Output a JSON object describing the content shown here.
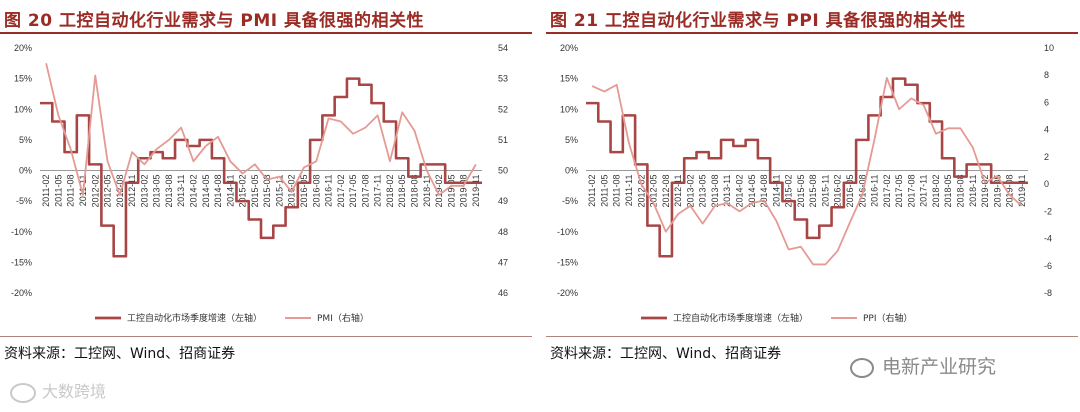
{
  "chart_data": [
    {
      "type": "line",
      "title": "图 20 工控自动化行业需求与 PMI 具备很强的相关性",
      "source": "资料来源：工控网、Wind、招商证券",
      "x": [
        "2011-02",
        "2011-05",
        "2011-08",
        "2011-11",
        "2012-02",
        "2012-05",
        "2012-08",
        "2012-11",
        "2013-02",
        "2013-05",
        "2013-08",
        "2013-11",
        "2014-02",
        "2014-05",
        "2014-08",
        "2014-11",
        "2015-02",
        "2015-05",
        "2015-08",
        "2015-11",
        "2016-02",
        "2016-05",
        "2016-08",
        "2016-11",
        "2017-02",
        "2017-05",
        "2017-08",
        "2017-11",
        "2018-02",
        "2018-05",
        "2018-08",
        "2018-11",
        "2019-02",
        "2019-05",
        "2019-08",
        "2019-11"
      ],
      "y_left": {
        "ticks": [
          "20%",
          "15%",
          "10%",
          "5%",
          "0%",
          "-5%",
          "-10%",
          "-15%",
          "-20%"
        ],
        "ylim": [
          -20,
          20
        ]
      },
      "y_right": {
        "ticks": [
          "54",
          "53",
          "52",
          "51",
          "50",
          "49",
          "48",
          "47",
          "46"
        ],
        "ylim": [
          46,
          54
        ]
      },
      "series": [
        {
          "name": "工控自动化市场季度增速（左轴）",
          "axis": "left",
          "color": "#a84545",
          "style": "step",
          "values": [
            11,
            8,
            3,
            9,
            1,
            -9,
            -14,
            -2,
            2,
            3,
            2,
            5,
            4,
            5,
            2,
            -2,
            -5,
            -8,
            -11,
            -9,
            -6,
            -2,
            5,
            9,
            12,
            15,
            14,
            11,
            8,
            2,
            -1,
            1,
            1,
            -2,
            -2,
            -2
          ]
        },
        {
          "name": "PMI（右轴）",
          "axis": "right",
          "color": "#e59a93",
          "style": "line",
          "values": [
            53.5,
            51.8,
            50.7,
            49.2,
            53.1,
            50.3,
            49.2,
            50.6,
            50.2,
            50.7,
            51.0,
            51.4,
            50.3,
            50.8,
            51.1,
            50.3,
            49.9,
            50.2,
            49.7,
            49.8,
            49.3,
            50.1,
            50.3,
            51.7,
            51.6,
            51.2,
            51.4,
            51.8,
            50.3,
            51.9,
            51.3,
            50.0,
            49.2,
            49.5,
            49.5,
            50.2
          ]
        }
      ]
    },
    {
      "type": "line",
      "title": "图 21 工控自动化行业需求与 PPI 具备很强的相关性",
      "source": "资料来源：工控网、Wind、招商证券",
      "x": [
        "2011-02",
        "2011-05",
        "2011-08",
        "2011-11",
        "2012-02",
        "2012-05",
        "2012-08",
        "2012-11",
        "2013-02",
        "2013-05",
        "2013-08",
        "2013-11",
        "2014-02",
        "2014-05",
        "2014-08",
        "2014-11",
        "2015-02",
        "2015-05",
        "2015-08",
        "2015-11",
        "2016-02",
        "2016-05",
        "2016-08",
        "2016-11",
        "2017-02",
        "2017-05",
        "2017-08",
        "2017-11",
        "2018-02",
        "2018-05",
        "2018-08",
        "2018-11",
        "2019-02",
        "2019-05",
        "2019-08",
        "2019-11"
      ],
      "y_left": {
        "ticks": [
          "20%",
          "15%",
          "10%",
          "5%",
          "0%",
          "-5%",
          "-10%",
          "-15%",
          "-20%"
        ],
        "ylim": [
          -20,
          20
        ]
      },
      "y_right": {
        "ticks": [
          "10",
          "8",
          "6",
          "4",
          "2",
          "0",
          "-2",
          "-4",
          "-6",
          "-8"
        ],
        "ylim": [
          -8,
          10
        ]
      },
      "series": [
        {
          "name": "工控自动化市场季度增速（左轴）",
          "axis": "left",
          "color": "#a84545",
          "style": "step",
          "values": [
            11,
            8,
            3,
            9,
            1,
            -9,
            -14,
            -2,
            2,
            3,
            2,
            5,
            4,
            5,
            2,
            -2,
            -5,
            -8,
            -11,
            -9,
            -6,
            -2,
            5,
            9,
            12,
            15,
            14,
            11,
            8,
            2,
            -1,
            1,
            1,
            -2,
            -2,
            -2
          ]
        },
        {
          "name": "PPI（右轴）",
          "axis": "right",
          "color": "#e59a93",
          "style": "line",
          "values": [
            7.2,
            6.8,
            7.3,
            3.0,
            0.0,
            -1.4,
            -3.5,
            -2.2,
            -1.6,
            -2.9,
            -1.6,
            -1.4,
            -2.0,
            -1.4,
            -1.2,
            -2.7,
            -4.8,
            -4.6,
            -5.9,
            -5.9,
            -4.9,
            -2.8,
            -0.8,
            3.3,
            7.8,
            5.5,
            6.3,
            5.8,
            3.7,
            4.1,
            4.1,
            2.7,
            0.1,
            0.6,
            -0.8,
            -1.6
          ]
        }
      ]
    }
  ],
  "watermarks": {
    "left": "大数跨境",
    "right": "电新产业研究"
  }
}
